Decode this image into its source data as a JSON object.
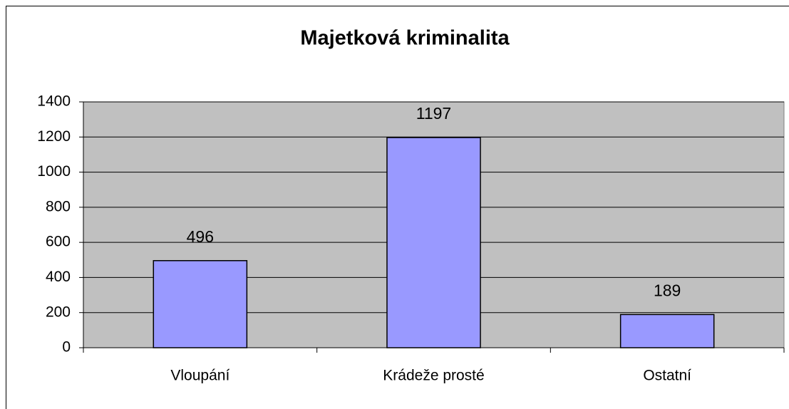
{
  "chart_data": {
    "type": "bar",
    "title": "Majetková kriminalita",
    "categories": [
      "Vloupání",
      "Krádeže prosté",
      "Ostatní"
    ],
    "values": [
      496,
      1197,
      189
    ],
    "color": "#9999ff",
    "ylim": [
      0,
      1400
    ],
    "yticks": [
      0,
      200,
      400,
      600,
      800,
      1000,
      1200,
      1400
    ],
    "grid": true
  }
}
